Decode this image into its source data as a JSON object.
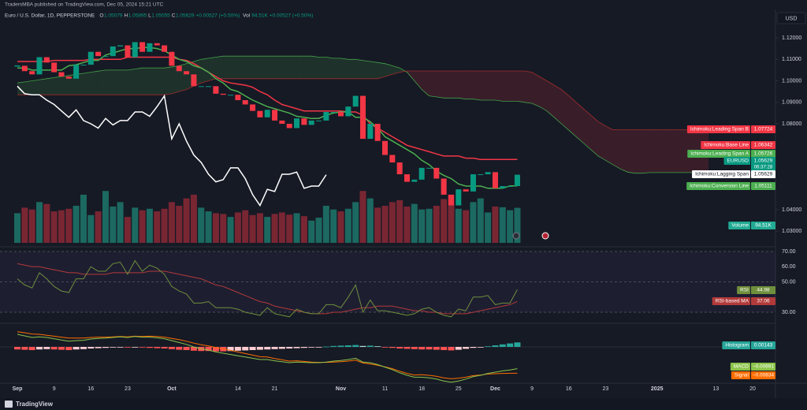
{
  "header": {
    "publisher": "TradersMBA published on TradingView.com, Dec 05, 2024 15:21 UTC",
    "symbol": "Euro / U.S. Dollar, 1D, PEPPERSTONE",
    "ohlc": [
      {
        "key": "O",
        "value": "1.05079"
      },
      {
        "key": "H",
        "value": "1.05895"
      },
      {
        "key": "L",
        "value": "1.05055"
      },
      {
        "key": "C",
        "value": "1.05629"
      }
    ],
    "change": "+0.00527 (+0.50%)",
    "volume_key": "Vol",
    "volume": "94.51K",
    "volume_change": "+0.00527 (+0.50%)"
  },
  "currency": "USD",
  "x_axis": [
    "Sep",
    "9",
    "16",
    "23",
    "Oct",
    "14",
    "21",
    "Nov",
    "11",
    "18",
    "25",
    "Dec",
    "9",
    "16",
    "23",
    "2025",
    "13",
    "20"
  ],
  "price": {
    "ylim": [
      1.02,
      1.132
    ],
    "yticks": [
      {
        "value": 1.12,
        "label": "1.12000"
      },
      {
        "value": 1.11,
        "label": "1.11000"
      },
      {
        "value": 1.1,
        "label": "1.10000"
      },
      {
        "value": 1.09,
        "label": "1.09000"
      },
      {
        "value": 1.08,
        "label": "1.08000"
      },
      {
        "value": 1.04,
        "label": "1.04000"
      },
      {
        "value": 1.03,
        "label": "1.03000"
      }
    ],
    "closes": [
      1.107,
      1.1045,
      1.103,
      1.111,
      1.1085,
      1.104,
      1.102,
      1.101,
      1.1075,
      1.1075,
      1.1135,
      1.1115,
      1.1115,
      1.116,
      1.1165,
      1.111,
      1.118,
      1.1135,
      1.1175,
      1.1165,
      1.1135,
      1.107,
      1.1045,
      1.103,
      1.0975,
      1.0975,
      1.0975,
      1.094,
      1.0935,
      1.0935,
      1.091,
      1.089,
      1.086,
      1.083,
      1.0865,
      1.0815,
      1.08,
      1.078,
      1.0825,
      1.0795,
      1.0815,
      1.0815,
      1.0855,
      1.0855,
      1.0835,
      1.088,
      1.093,
      1.073,
      1.08,
      1.072,
      1.0655,
      1.062,
      1.0565,
      1.053,
      1.054,
      1.0595,
      1.0595,
      1.0545,
      1.047,
      1.042,
      1.0495,
      1.0485,
      1.0565,
      1.0565,
      1.0575,
      1.05,
      1.051,
      1.051,
      1.05629
    ],
    "conversion_line": [
      1.106,
      1.106,
      1.105,
      1.105,
      1.105,
      1.105,
      1.105,
      1.107,
      1.1075,
      1.1085,
      1.1095,
      1.1095,
      1.112,
      1.113,
      1.114,
      1.115,
      1.115,
      1.1155,
      1.1155,
      1.115,
      1.114,
      1.112,
      1.11,
      1.109,
      1.107,
      1.106,
      1.104,
      1.101,
      1.099,
      1.096,
      1.095,
      1.093,
      1.091,
      1.0895,
      1.088,
      1.087,
      1.086,
      1.085,
      1.0835,
      1.083,
      1.0825,
      1.0825,
      1.084,
      1.085,
      1.0855,
      1.0855,
      1.083,
      1.083,
      1.081,
      1.078,
      1.074,
      1.072,
      1.07,
      1.068,
      1.066,
      1.063,
      1.061,
      1.058,
      1.056,
      1.0545,
      1.052,
      1.051,
      1.051,
      1.051,
      1.05,
      1.05,
      1.05,
      1.0511,
      1.05111
    ],
    "base_line": [
      1.109,
      1.109,
      1.109,
      1.109,
      1.109,
      1.1095,
      1.1095,
      1.1095,
      1.1095,
      1.1095,
      1.11,
      1.11,
      1.11,
      1.11,
      1.11,
      1.111,
      1.111,
      1.111,
      1.111,
      1.111,
      1.111,
      1.111,
      1.11,
      1.1095,
      1.108,
      1.106,
      1.104,
      1.102,
      1.1,
      1.099,
      1.0985,
      1.098,
      1.097,
      1.095,
      1.0935,
      1.091,
      1.089,
      1.088,
      1.087,
      1.086,
      1.086,
      1.086,
      1.086,
      1.086,
      1.086,
      1.0855,
      1.0855,
      1.084,
      1.08,
      1.078,
      1.076,
      1.074,
      1.072,
      1.07,
      1.069,
      1.068,
      1.067,
      1.066,
      1.065,
      1.065,
      1.065,
      1.064,
      1.064,
      1.0634,
      1.0634,
      1.0634,
      1.0634,
      1.0634,
      1.06342
    ],
    "span_a": [
      1.099,
      1.0995,
      1.1,
      1.1005,
      1.101,
      1.1015,
      1.102,
      1.1025,
      1.103,
      1.1035,
      1.104,
      1.1045,
      1.105,
      1.105,
      1.105,
      1.105,
      1.1055,
      1.106,
      1.106,
      1.106,
      1.106,
      1.1065,
      1.107,
      1.108,
      1.109,
      1.11,
      1.1105,
      1.111,
      1.1115,
      1.1115,
      1.1115,
      1.1115,
      1.1115,
      1.1115,
      1.1115,
      1.1115,
      1.1115,
      1.1115,
      1.1115,
      1.1115,
      1.1115,
      1.111,
      1.111,
      1.1105,
      1.1105,
      1.11,
      1.11,
      1.1095,
      1.109,
      1.1085,
      1.108,
      1.107,
      1.106,
      1.104,
      1.1,
      1.096,
      1.093,
      1.0925,
      1.092,
      1.092,
      1.092,
      1.0915,
      1.0915,
      1.091,
      1.091,
      1.091,
      1.0905,
      1.0905,
      1.0905,
      1.09,
      1.0895,
      1.088,
      1.086,
      1.083,
      1.08,
      1.077,
      1.074,
      1.071,
      1.068,
      1.065,
      1.063,
      1.061,
      1.059,
      1.0575,
      1.057,
      1.057,
      1.0573,
      1.0573,
      1.0573,
      1.0573,
      1.0573,
      1.0573,
      1.0573,
      1.0573,
      1.05726
    ],
    "span_b": [
      1.0935,
      1.0935,
      1.0935,
      1.0935,
      1.0935,
      1.0935,
      1.0935,
      1.0935,
      1.0935,
      1.0935,
      1.0935,
      1.0935,
      1.0935,
      1.0935,
      1.0935,
      1.0935,
      1.0935,
      1.0935,
      1.0935,
      1.0935,
      1.0935,
      1.094,
      1.095,
      1.096,
      1.0975,
      1.099,
      1.1,
      1.101,
      1.101,
      1.101,
      1.101,
      1.101,
      1.101,
      1.101,
      1.101,
      1.101,
      1.101,
      1.101,
      1.101,
      1.101,
      1.101,
      1.101,
      1.101,
      1.101,
      1.101,
      1.101,
      1.101,
      1.101,
      1.101,
      1.101,
      1.102,
      1.103,
      1.104,
      1.1046,
      1.1046,
      1.1046,
      1.1046,
      1.1046,
      1.1046,
      1.1046,
      1.1046,
      1.1046,
      1.1046,
      1.1046,
      1.1046,
      1.1046,
      1.1046,
      1.1046,
      1.1046,
      1.1046,
      1.104,
      1.102,
      1.1,
      1.098,
      1.096,
      1.093,
      1.09,
      1.087,
      1.084,
      1.081,
      1.079,
      1.0772,
      1.0772,
      1.0772,
      1.0772,
      1.0772,
      1.0772,
      1.0772,
      1.0772,
      1.0772,
      1.0772,
      1.0772,
      1.0772,
      1.0772,
      1.07724
    ],
    "volume": [
      80,
      95,
      90,
      110,
      105,
      85,
      88,
      92,
      100,
      130,
      75,
      85,
      140,
      98,
      110,
      70,
      95,
      88,
      92,
      85,
      92,
      110,
      100,
      120,
      130,
      95,
      85,
      80,
      78,
      70,
      82,
      88,
      75,
      80,
      70,
      78,
      82,
      76,
      80,
      72,
      60,
      68,
      100,
      90,
      85,
      92,
      110,
      140,
      120,
      95,
      100,
      110,
      115,
      98,
      105,
      90,
      92,
      100,
      118,
      130,
      92,
      88,
      110,
      120,
      82,
      98,
      96,
      88,
      94.51
    ],
    "badges": [
      {
        "name": "Ichimoku:Leading Span B",
        "value": "1.07724"
      },
      {
        "name": "Ichimoku:Base Line",
        "value": "1.06342"
      },
      {
        "name": "Ichimoku:Leading Span A",
        "value": "1.05726"
      },
      {
        "name": "EURUSD",
        "value": "1.05629",
        "timer": "06:37:28"
      },
      {
        "name": "Ichimoku:Lagging Span",
        "value": "1.05629"
      },
      {
        "name": "Ichimoku:Conversion Line",
        "value": "1.05111"
      },
      {
        "name": "Volume",
        "value": "94.51K"
      }
    ]
  },
  "rsi": {
    "yticks": [
      {
        "value": 70,
        "label": "70.00"
      },
      {
        "value": 60,
        "label": "60.00"
      },
      {
        "value": 50,
        "label": "50.00"
      },
      {
        "value": 30,
        "label": "30.00"
      }
    ],
    "values": [
      52,
      48,
      46,
      56,
      52,
      47,
      44,
      43,
      52,
      52,
      60,
      57,
      57,
      62,
      63,
      55,
      64,
      57,
      61,
      59,
      55,
      47,
      44,
      42,
      36,
      36,
      37,
      33,
      33,
      33,
      32,
      30,
      29,
      28,
      33,
      29,
      28,
      27,
      32,
      30,
      29,
      29,
      35,
      35,
      33,
      40,
      48,
      30,
      38,
      31,
      31,
      30,
      29,
      28,
      29,
      32,
      33,
      30,
      28,
      27,
      32,
      31,
      40,
      40,
      41,
      35,
      36,
      36,
      44.98
    ],
    "ma": [
      62,
      61,
      60,
      60,
      59,
      58,
      57,
      56,
      56,
      55,
      55,
      55,
      55,
      56,
      56,
      56,
      56,
      56,
      57,
      57,
      57,
      56,
      55,
      54,
      53,
      52,
      50,
      48,
      47,
      45,
      43,
      41,
      39,
      37,
      36,
      34,
      33,
      32,
      31,
      30,
      29,
      29,
      29,
      30,
      30,
      31,
      32,
      33,
      33,
      34,
      34,
      34,
      33,
      32,
      31,
      31,
      30,
      30,
      29,
      29,
      29,
      29,
      30,
      31,
      32,
      33,
      34,
      35,
      37.06
    ],
    "badges": [
      {
        "name": "RSI",
        "value": "44.98"
      },
      {
        "name": "RSI-based MA",
        "value": "37.06"
      }
    ]
  },
  "macd": {
    "histogram": [
      -0.0008,
      -0.0009,
      -0.001,
      -0.0008,
      -0.0007,
      -0.0008,
      -0.0009,
      -0.001,
      -0.0008,
      -0.0007,
      -0.0005,
      -0.0004,
      -0.0003,
      -0.0002,
      -0.0001,
      -0.0002,
      -0.0001,
      -0.0002,
      -0.0003,
      -0.0004,
      -0.0005,
      -0.0007,
      -0.0009,
      -0.001,
      -0.0012,
      -0.0013,
      -0.0013,
      -0.0014,
      -0.0014,
      -0.0013,
      -0.0012,
      -0.0011,
      -0.001,
      -0.0009,
      -0.0008,
      -0.0007,
      -0.0006,
      -0.0005,
      -0.0004,
      -0.0003,
      -0.0002,
      -0.0001,
      0.0001,
      0.0003,
      0.0004,
      0.0005,
      0.0006,
      0.0003,
      0.0004,
      0.0002,
      -0.0001,
      -0.0003,
      -0.0005,
      -0.0006,
      -0.0007,
      -0.0008,
      -0.0008,
      -0.0009,
      -0.001,
      -0.0011,
      -0.0009,
      -0.0006,
      -0.0003,
      -0.0001,
      0.0002,
      0.0005,
      0.0008,
      0.0011,
      0.00143
    ],
    "macd": [
      0.004,
      0.0035,
      0.003,
      0.0032,
      0.003,
      0.0026,
      0.0022,
      0.0018,
      0.002,
      0.0021,
      0.0025,
      0.0027,
      0.0028,
      0.003,
      0.0032,
      0.003,
      0.0033,
      0.0031,
      0.0031,
      0.0029,
      0.0026,
      0.002,
      0.0014,
      0.0008,
      0.0,
      -0.0006,
      -0.001,
      -0.0016,
      -0.002,
      -0.0024,
      -0.0028,
      -0.0032,
      -0.0036,
      -0.004,
      -0.004,
      -0.0044,
      -0.0047,
      -0.005,
      -0.0048,
      -0.0049,
      -0.005,
      -0.005,
      -0.0048,
      -0.0045,
      -0.0043,
      -0.004,
      -0.0036,
      -0.0048,
      -0.005,
      -0.0056,
      -0.0064,
      -0.0072,
      -0.0082,
      -0.009,
      -0.0096,
      -0.0096,
      -0.0098,
      -0.0102,
      -0.0108,
      -0.0112,
      -0.0108,
      -0.0102,
      -0.0094,
      -0.009,
      -0.0084,
      -0.008,
      -0.0076,
      -0.0073,
      -0.00691
    ],
    "signal": [
      0.0048,
      0.0045,
      0.0041,
      0.004,
      0.0037,
      0.0034,
      0.0031,
      0.0028,
      0.0028,
      0.0028,
      0.003,
      0.0031,
      0.0031,
      0.0032,
      0.0033,
      0.0032,
      0.0034,
      0.0033,
      0.0034,
      0.0033,
      0.0031,
      0.0027,
      0.0023,
      0.0018,
      0.0012,
      0.0007,
      0.0003,
      -0.0002,
      -0.0006,
      -0.0011,
      -0.0016,
      -0.0021,
      -0.0026,
      -0.0031,
      -0.0032,
      -0.0037,
      -0.0041,
      -0.0045,
      -0.0044,
      -0.0046,
      -0.0048,
      -0.0049,
      -0.0049,
      -0.0048,
      -0.0047,
      -0.0045,
      -0.0042,
      -0.0051,
      -0.0054,
      -0.0058,
      -0.0063,
      -0.0069,
      -0.0077,
      -0.0084,
      -0.0089,
      -0.0088,
      -0.009,
      -0.0093,
      -0.0098,
      -0.0101,
      -0.0099,
      -0.0096,
      -0.0091,
      -0.0089,
      -0.0086,
      -0.0085,
      -0.0084,
      -0.00835,
      -0.00834
    ],
    "badges": [
      {
        "name": "Histogram",
        "value": "0.00143"
      },
      {
        "name": "MACD",
        "value": "−0.00691"
      },
      {
        "name": "Signal",
        "value": "−0.00834"
      }
    ]
  },
  "footer": "TradingView"
}
